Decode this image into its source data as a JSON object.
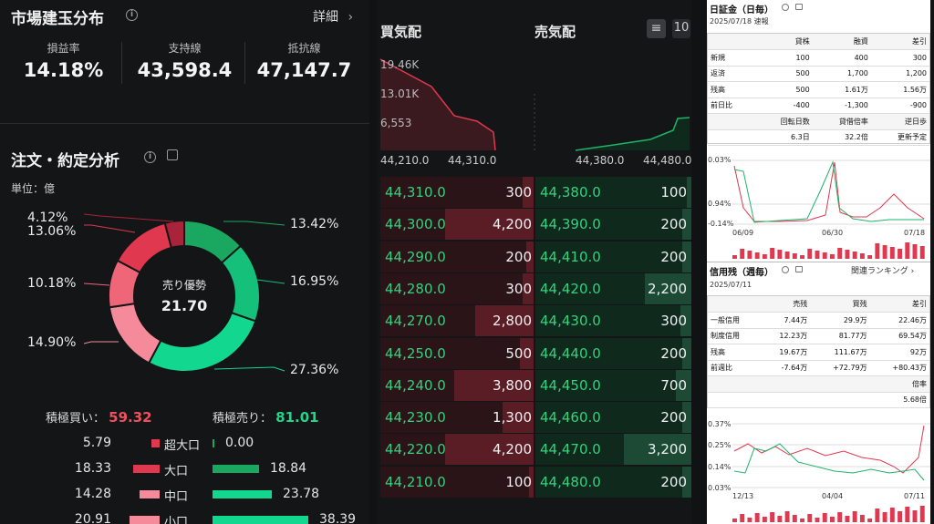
{
  "market": {
    "title": "市場建玉分布",
    "detail_label": "詳細",
    "stats": [
      {
        "label": "損益率",
        "value": "14.18%"
      },
      {
        "label": "支持線",
        "value": "43,598.4"
      },
      {
        "label": "抵抗線",
        "value": "47,147.7"
      }
    ]
  },
  "analysis": {
    "title": "注文・約定分析",
    "unit": "単位：億",
    "donut_center_label": "売り優勢",
    "donut_center_value": "21.70",
    "slices": [
      {
        "label": "13.42%",
        "value": 13.42,
        "color": "#1aa860"
      },
      {
        "label": "16.95%",
        "value": 16.95,
        "color": "#14c07a"
      },
      {
        "label": "27.36%",
        "value": 27.36,
        "color": "#12d88f"
      },
      {
        "label": "14.90%",
        "value": 14.9,
        "color": "#f48a9a"
      },
      {
        "label": "10.18%",
        "value": 10.18,
        "color": "#ee6678"
      },
      {
        "label": "13.06%",
        "value": 13.06,
        "color": "#e0384e"
      },
      {
        "label": "4.12%",
        "value": 4.12,
        "color": "#a8243a"
      }
    ],
    "buy_label": "積極買い：",
    "buy_value": "59.32",
    "sell_label": "積極売り：",
    "sell_value": "81.01",
    "rows": [
      {
        "buy": "5.79",
        "label": "超大口",
        "sell": "0.00",
        "buy_frac": 0.15,
        "sell_frac": 0.0
      },
      {
        "buy": "18.33",
        "label": "大口",
        "sell": "18.84",
        "buy_frac": 0.48,
        "sell_frac": 0.49
      },
      {
        "buy": "14.28",
        "label": "中口",
        "sell": "23.78",
        "buy_frac": 0.37,
        "sell_frac": 0.62
      },
      {
        "buy": "20.91",
        "label": "小口",
        "sell": "38.39",
        "buy_frac": 0.55,
        "sell_frac": 1.0
      }
    ]
  },
  "orderbook": {
    "buy_title": "買気配",
    "sell_title": "売気配",
    "depth_button": "10",
    "depth_labels": [
      "19.46K",
      "13.01K",
      "6,553"
    ],
    "depth_x_labels": [
      "44,210.0",
      "44,310.0",
      "44,380.0",
      "44,480.0"
    ],
    "rows": [
      {
        "bid": "44,310.0",
        "bid_qty": "300",
        "ask": "44,380.0",
        "ask_qty": "100",
        "bid_frac": 0.07,
        "ask_frac": 0.03
      },
      {
        "bid": "44,300.0",
        "bid_qty": "4,200",
        "ask": "44,390.0",
        "ask_qty": "200",
        "bid_frac": 0.58,
        "ask_frac": 0.06
      },
      {
        "bid": "44,290.0",
        "bid_qty": "200",
        "ask": "44,410.0",
        "ask_qty": "200",
        "bid_frac": 0.05,
        "ask_frac": 0.06
      },
      {
        "bid": "44,280.0",
        "bid_qty": "300",
        "ask": "44,420.0",
        "ask_qty": "2,200",
        "bid_frac": 0.07,
        "ask_frac": 0.3
      },
      {
        "bid": "44,270.0",
        "bid_qty": "2,800",
        "ask": "44,430.0",
        "ask_qty": "300",
        "bid_frac": 0.38,
        "ask_frac": 0.07
      },
      {
        "bid": "44,250.0",
        "bid_qty": "500",
        "ask": "44,440.0",
        "ask_qty": "200",
        "bid_frac": 0.09,
        "ask_frac": 0.06
      },
      {
        "bid": "44,240.0",
        "bid_qty": "3,800",
        "ask": "44,450.0",
        "ask_qty": "700",
        "bid_frac": 0.52,
        "ask_frac": 0.1
      },
      {
        "bid": "44,230.0",
        "bid_qty": "1,300",
        "ask": "44,460.0",
        "ask_qty": "200",
        "bid_frac": 0.2,
        "ask_frac": 0.06
      },
      {
        "bid": "44,220.0",
        "bid_qty": "4,200",
        "ask": "44,470.0",
        "ask_qty": "3,200",
        "bid_frac": 0.58,
        "ask_frac": 0.43
      },
      {
        "bid": "44,210.0",
        "bid_qty": "100",
        "ask": "44,480.0",
        "ask_qty": "200",
        "bid_frac": 0.03,
        "ask_frac": 0.06
      }
    ]
  },
  "nissho": {
    "title": "日証金（日毎）",
    "date": "2025/07/18 速報",
    "headers": [
      "",
      "貸株",
      "融資",
      "差引"
    ],
    "rows": [
      [
        "新規",
        "100",
        "400",
        "300"
      ],
      [
        "返済",
        "500",
        "1,700",
        "1,200"
      ],
      [
        "残高",
        "500",
        "1.61万",
        "1.56万"
      ],
      [
        "前日比",
        "-400",
        "-1,300",
        "-900"
      ]
    ],
    "ratio_headers": [
      "回転日数",
      "貸借倍率",
      "逆日歩"
    ],
    "ratio_values": [
      "6.3日",
      "32.2倍",
      "更新予定"
    ],
    "y_labels": [
      "0.03%",
      "0.94%",
      "-0.14%"
    ],
    "x_labels": [
      "06/09",
      "06/30",
      "07/18"
    ]
  },
  "shinyo": {
    "title": "信用残（週毎）",
    "related": "関連ランキング",
    "date": "2025/07/11",
    "headers": [
      "",
      "売残",
      "買残",
      "差引"
    ],
    "rows": [
      [
        "一般信用",
        "7.44万",
        "29.9万",
        "22.46万"
      ],
      [
        "制度信用",
        "12.23万",
        "81.77万",
        "69.54万"
      ],
      [
        "残高",
        "19.67万",
        "111.67万",
        "92万"
      ],
      [
        "前週比",
        "-7.64万",
        "+72.79万",
        "+80.43万"
      ]
    ],
    "ratio_header": "倍率",
    "ratio_value": "5.68倍",
    "y_labels": [
      "0.37%",
      "0.25%",
      "0.14%",
      "0.03%"
    ],
    "x_labels": [
      "12/13",
      "04/04",
      "07/11"
    ]
  }
}
